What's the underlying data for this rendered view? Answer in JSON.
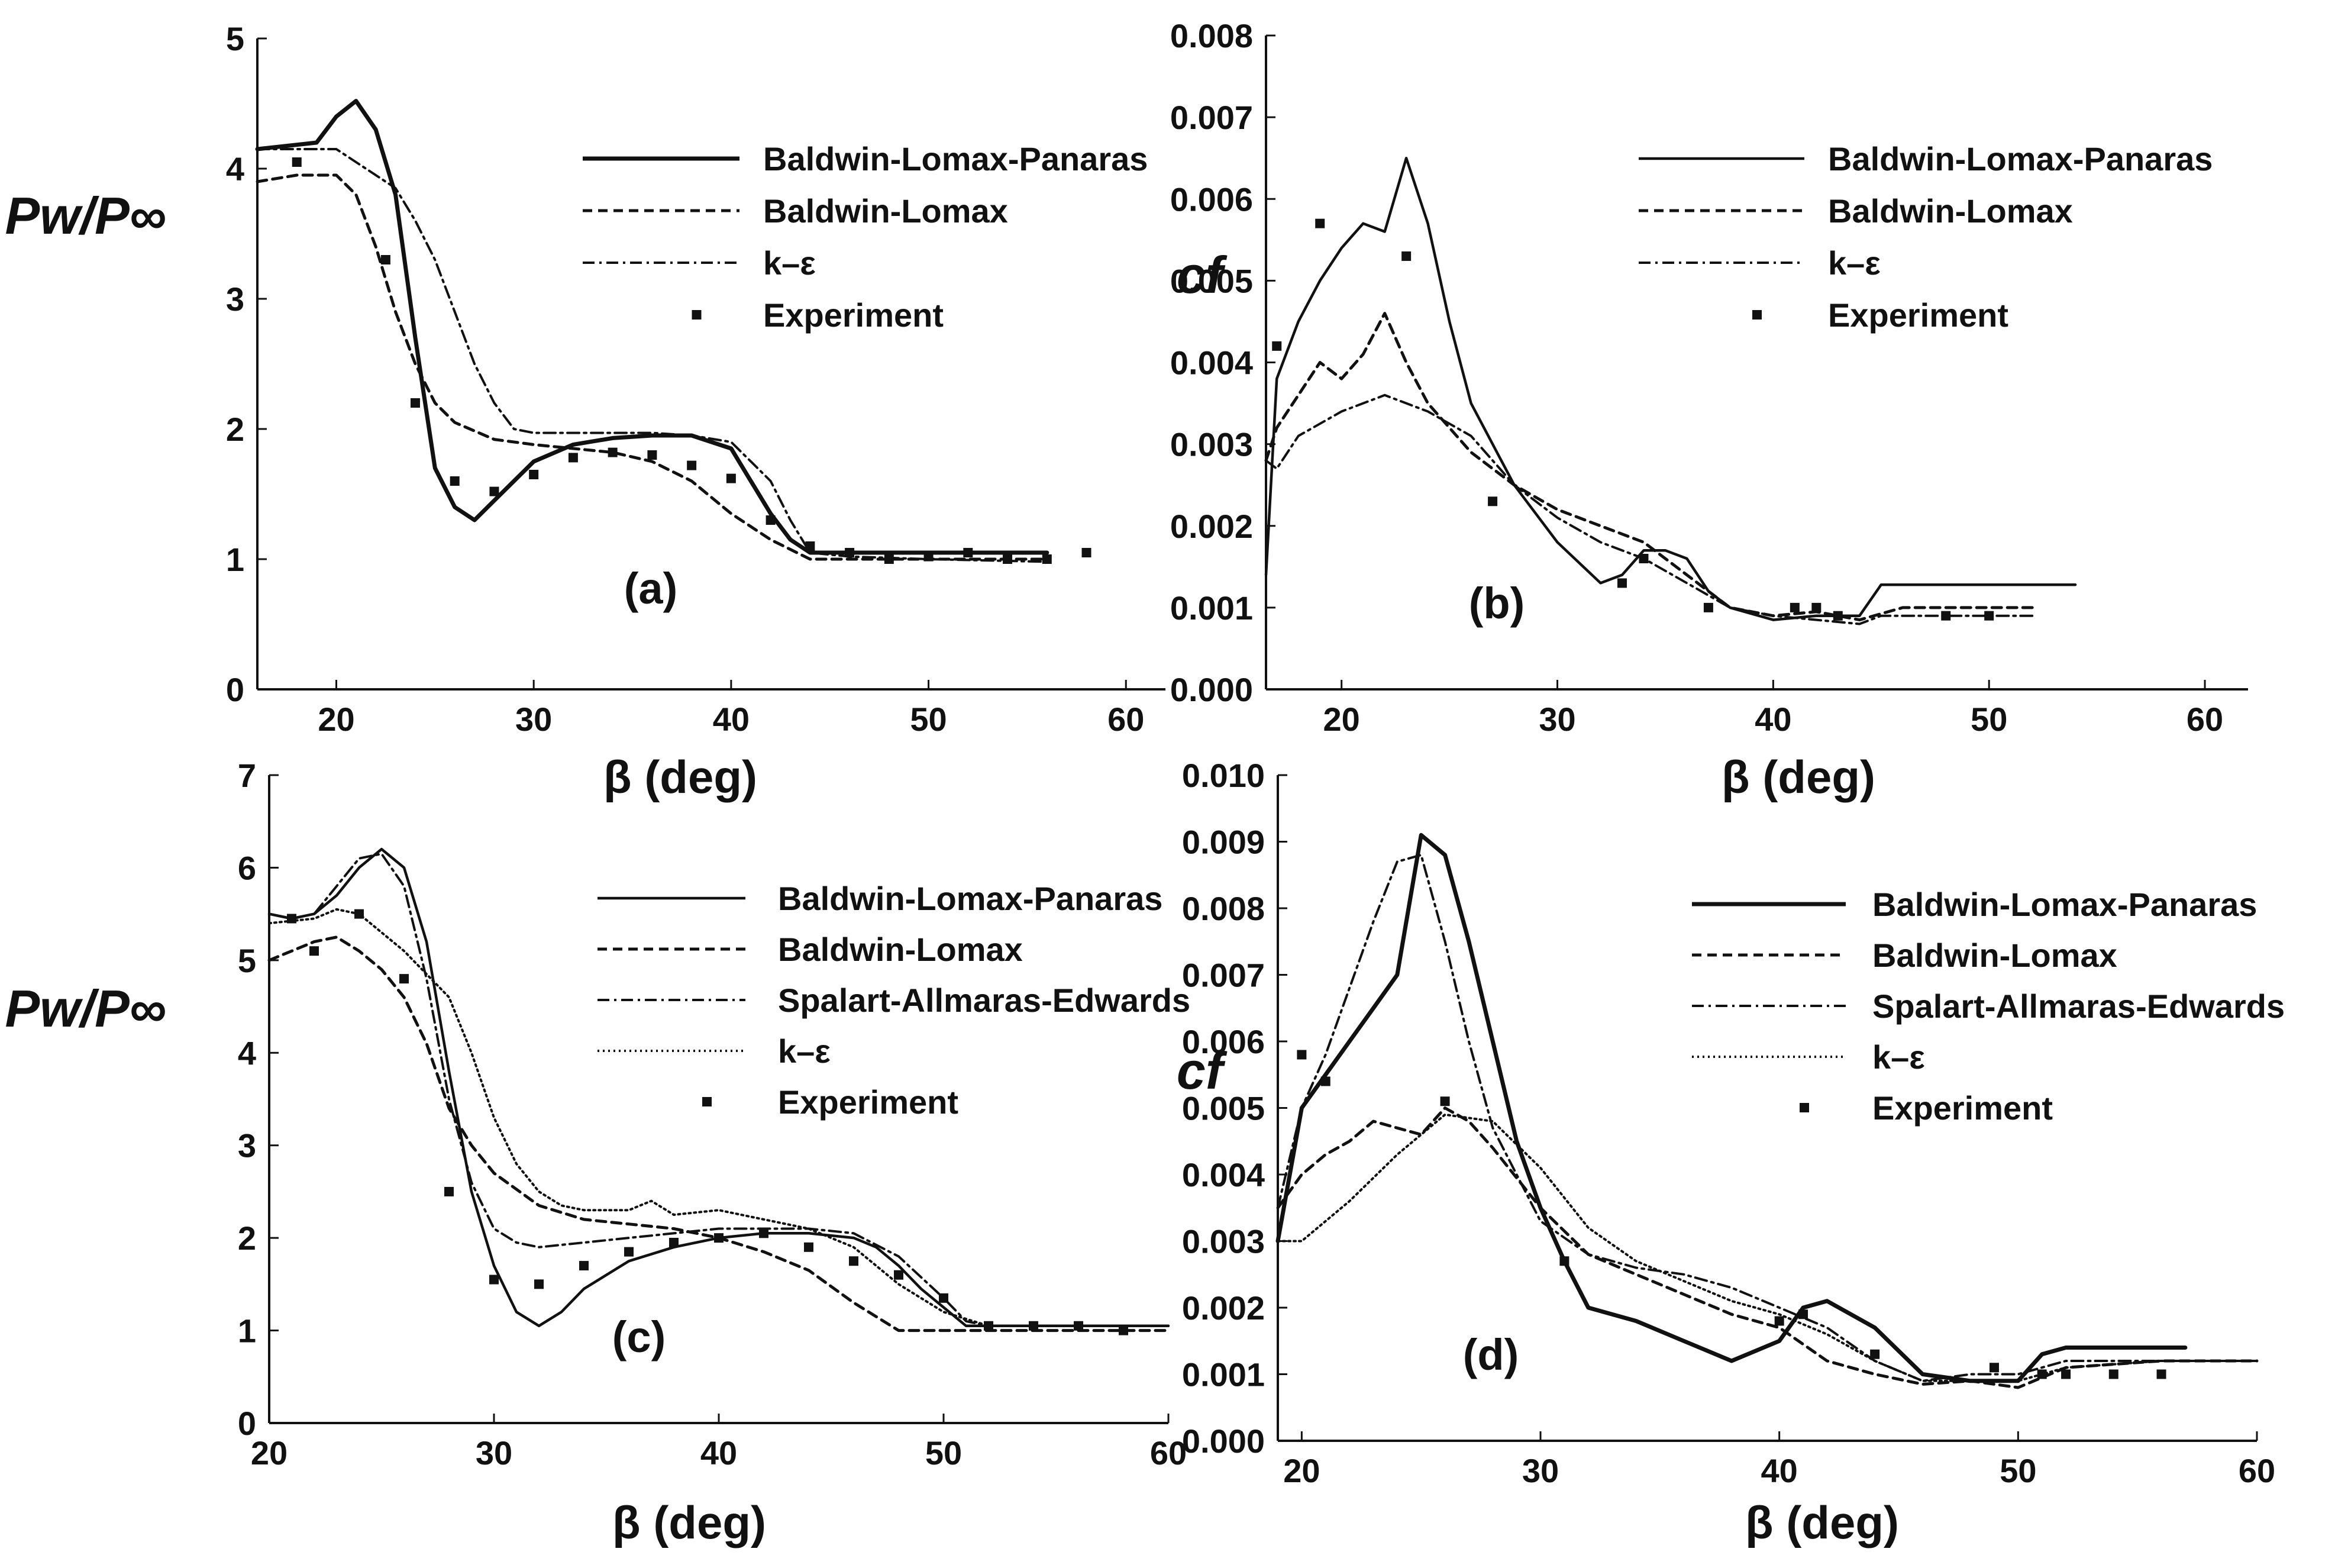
{
  "chart_data": [
    {
      "type": "line",
      "panel_label": "(a)",
      "xlabel": "β (deg)",
      "ylabel": "Pw/P∞",
      "xlim": [
        16,
        62
      ],
      "ylim": [
        0,
        5
      ],
      "xticks": [
        20,
        30,
        40,
        50,
        60
      ],
      "yticks": [
        0,
        1,
        2,
        3,
        4,
        5
      ],
      "ytick_labels": [
        "0",
        "1",
        "2",
        "3",
        "4",
        "5"
      ],
      "legend": [
        "Baldwin-Lomax-Panaras",
        "Baldwin-Lomax",
        "k–ε",
        "Experiment"
      ],
      "series": [
        {
          "name": "Baldwin-Lomax-Panaras",
          "style": "solid-thick",
          "x": [
            16,
            19,
            20,
            21,
            22,
            23,
            24,
            25,
            26,
            27,
            28,
            29,
            30,
            32,
            34,
            36,
            38,
            40,
            41,
            42,
            43,
            44,
            46,
            50,
            56
          ],
          "y": [
            4.15,
            4.2,
            4.4,
            4.52,
            4.3,
            3.8,
            2.7,
            1.7,
            1.4,
            1.3,
            1.45,
            1.6,
            1.75,
            1.88,
            1.93,
            1.95,
            1.95,
            1.85,
            1.6,
            1.35,
            1.15,
            1.05,
            1.05,
            1.05,
            1.05
          ]
        },
        {
          "name": "Baldwin-Lomax",
          "style": "dashed",
          "x": [
            16,
            18,
            20,
            21,
            22,
            23,
            24,
            25,
            26,
            28,
            30,
            32,
            34,
            36,
            38,
            40,
            42,
            44,
            46,
            50,
            56
          ],
          "y": [
            3.9,
            3.95,
            3.95,
            3.8,
            3.4,
            2.9,
            2.5,
            2.2,
            2.05,
            1.92,
            1.88,
            1.85,
            1.82,
            1.75,
            1.6,
            1.35,
            1.15,
            1.0,
            1.0,
            1.0,
            1.0
          ]
        },
        {
          "name": "k–ε",
          "style": "dashdot",
          "x": [
            16,
            18,
            20,
            21,
            22,
            23,
            24,
            25,
            26,
            27,
            28,
            29,
            30,
            32,
            34,
            36,
            38,
            40,
            42,
            43,
            44,
            46,
            50,
            56
          ],
          "y": [
            4.15,
            4.15,
            4.15,
            4.05,
            3.95,
            3.85,
            3.6,
            3.3,
            2.9,
            2.5,
            2.2,
            2.0,
            1.97,
            1.97,
            1.97,
            1.97,
            1.95,
            1.9,
            1.6,
            1.3,
            1.05,
            1.02,
            1.0,
            0.98
          ]
        },
        {
          "name": "Experiment",
          "style": "markers",
          "x": [
            18,
            22.5,
            24,
            26,
            28,
            30,
            32,
            34,
            36,
            38,
            40,
            42,
            44,
            46,
            48,
            50,
            52,
            54,
            56,
            58
          ],
          "y": [
            4.05,
            3.3,
            2.2,
            1.6,
            1.52,
            1.65,
            1.78,
            1.82,
            1.8,
            1.72,
            1.62,
            1.3,
            1.1,
            1.05,
            1.0,
            1.02,
            1.05,
            1.0,
            1.0,
            1.05
          ]
        }
      ]
    },
    {
      "type": "line",
      "panel_label": "(b)",
      "xlabel": "β (deg)",
      "ylabel": "cf",
      "xlim": [
        16.5,
        62
      ],
      "ylim": [
        0,
        0.008
      ],
      "xticks": [
        20,
        30,
        40,
        50,
        60
      ],
      "yticks": [
        0,
        0.001,
        0.002,
        0.003,
        0.004,
        0.005,
        0.006,
        0.007,
        0.008
      ],
      "ytick_labels": [
        "0.000",
        "0.001",
        "0.002",
        "0.003",
        "0.004",
        "0.005",
        "0.006",
        "0.007",
        "0.008"
      ],
      "legend": [
        "Baldwin-Lomax-Panaras",
        "Baldwin-Lomax",
        "k–ε",
        "Experiment"
      ],
      "series": [
        {
          "name": "Baldwin-Lomax-Panaras",
          "style": "solid",
          "x": [
            16.5,
            17,
            18,
            19,
            20,
            21,
            22,
            23,
            24,
            25,
            26,
            28,
            30,
            32,
            33,
            34,
            35,
            36,
            37,
            38,
            40,
            42,
            44,
            45,
            50,
            54
          ],
          "y": [
            0.0014,
            0.0038,
            0.0045,
            0.005,
            0.0054,
            0.0057,
            0.0056,
            0.0065,
            0.0057,
            0.0045,
            0.0035,
            0.0025,
            0.0018,
            0.0013,
            0.0014,
            0.0017,
            0.0017,
            0.0016,
            0.0012,
            0.001,
            0.00085,
            0.0009,
            0.0009,
            0.00128,
            0.00128,
            0.00128
          ]
        },
        {
          "name": "Baldwin-Lomax",
          "style": "dashed",
          "x": [
            16.5,
            17,
            18,
            19,
            20,
            21,
            22,
            23,
            24,
            26,
            28,
            30,
            32,
            34,
            36,
            38,
            40,
            42,
            44,
            46,
            50,
            52
          ],
          "y": [
            0.0028,
            0.0032,
            0.0036,
            0.004,
            0.0038,
            0.0041,
            0.0046,
            0.004,
            0.0035,
            0.0029,
            0.0025,
            0.0022,
            0.002,
            0.0018,
            0.0014,
            0.001,
            0.0009,
            0.00095,
            0.00085,
            0.001,
            0.001,
            0.001
          ]
        },
        {
          "name": "k–ε",
          "style": "dashdot",
          "x": [
            16.5,
            17,
            18,
            20,
            22,
            24,
            26,
            28,
            30,
            32,
            34,
            36,
            38,
            40,
            42,
            44,
            45,
            46,
            50,
            52
          ],
          "y": [
            0.0028,
            0.0027,
            0.0031,
            0.0034,
            0.0036,
            0.0034,
            0.0031,
            0.0025,
            0.0021,
            0.0018,
            0.0016,
            0.0013,
            0.001,
            0.0009,
            0.00085,
            0.0008,
            0.0009,
            0.0009,
            0.0009,
            0.0009
          ]
        },
        {
          "name": "Experiment",
          "style": "markers",
          "x": [
            17,
            19,
            23,
            27,
            33,
            34,
            37,
            41,
            42,
            43,
            48,
            50
          ],
          "y": [
            0.0042,
            0.0057,
            0.0053,
            0.0023,
            0.0013,
            0.0016,
            0.001,
            0.001,
            0.001,
            0.0009,
            0.0009,
            0.0009
          ]
        }
      ]
    },
    {
      "type": "line",
      "panel_label": "(c)",
      "xlabel": "β (deg)",
      "ylabel": "Pw/P∞",
      "xlim": [
        20,
        60
      ],
      "ylim": [
        0,
        7
      ],
      "xticks": [
        20,
        30,
        40,
        50,
        60
      ],
      "yticks": [
        0,
        1,
        2,
        3,
        4,
        5,
        6,
        7
      ],
      "ytick_labels": [
        "0",
        "1",
        "2",
        "3",
        "4",
        "5",
        "6",
        "7"
      ],
      "legend": [
        "Baldwin-Lomax-Panaras",
        "Baldwin-Lomax",
        "Spalart-Allmaras-Edwards",
        "k–ε",
        "Experiment"
      ],
      "series": [
        {
          "name": "Baldwin-Lomax-Panaras",
          "style": "solid",
          "x": [
            20,
            21,
            22,
            23,
            24,
            25,
            26,
            27,
            28,
            29,
            30,
            31,
            32,
            33,
            34,
            36,
            38,
            40,
            42,
            44,
            46,
            47,
            48,
            49,
            50,
            51,
            52,
            56,
            60
          ],
          "y": [
            5.5,
            5.45,
            5.5,
            5.7,
            6.0,
            6.2,
            6.0,
            5.2,
            3.8,
            2.5,
            1.7,
            1.2,
            1.05,
            1.2,
            1.45,
            1.75,
            1.9,
            2.0,
            2.05,
            2.05,
            2.0,
            1.9,
            1.7,
            1.45,
            1.25,
            1.05,
            1.05,
            1.05,
            1.05
          ]
        },
        {
          "name": "Baldwin-Lomax",
          "style": "dashed",
          "x": [
            20,
            22,
            23,
            24,
            25,
            26,
            27,
            28,
            29,
            30,
            32,
            34,
            36,
            38,
            40,
            42,
            44,
            46,
            48,
            50,
            56,
            60
          ],
          "y": [
            5.0,
            5.2,
            5.25,
            5.1,
            4.9,
            4.6,
            4.1,
            3.4,
            3.0,
            2.7,
            2.35,
            2.2,
            2.15,
            2.1,
            2.0,
            1.85,
            1.65,
            1.3,
            1.0,
            1.0,
            1.0,
            1.0
          ]
        },
        {
          "name": "Spalart-Allmaras-Edwards",
          "style": "dashdot",
          "x": [
            20,
            21,
            22,
            23,
            24,
            25,
            26,
            27,
            28,
            29,
            30,
            31,
            32,
            34,
            36,
            38,
            40,
            42,
            44,
            46,
            48,
            50,
            51,
            52,
            56,
            60
          ],
          "y": [
            5.5,
            5.45,
            5.5,
            5.8,
            6.1,
            6.15,
            5.8,
            4.8,
            3.5,
            2.6,
            2.1,
            1.95,
            1.9,
            1.95,
            2.0,
            2.05,
            2.1,
            2.1,
            2.1,
            2.05,
            1.8,
            1.35,
            1.1,
            1.05,
            1.05,
            1.05
          ]
        },
        {
          "name": "k–ε",
          "style": "dotted",
          "x": [
            20,
            22,
            23,
            24,
            26,
            28,
            29,
            30,
            31,
            32,
            33,
            34,
            36,
            37,
            38,
            40,
            42,
            44,
            46,
            48,
            50,
            52,
            56,
            60
          ],
          "y": [
            5.4,
            5.45,
            5.55,
            5.5,
            5.1,
            4.6,
            4.0,
            3.3,
            2.8,
            2.5,
            2.35,
            2.3,
            2.3,
            2.4,
            2.25,
            2.3,
            2.2,
            2.1,
            1.9,
            1.5,
            1.2,
            1.05,
            1.05,
            1.05
          ]
        },
        {
          "name": "Experiment",
          "style": "markers",
          "x": [
            21,
            22,
            24,
            26,
            28,
            30,
            32,
            34,
            36,
            38,
            40,
            42,
            44,
            46,
            48,
            50,
            52,
            54,
            56,
            58
          ],
          "y": [
            5.45,
            5.1,
            5.5,
            4.8,
            2.5,
            1.55,
            1.5,
            1.7,
            1.85,
            1.95,
            2.0,
            2.05,
            1.9,
            1.75,
            1.6,
            1.35,
            1.05,
            1.05,
            1.05,
            1.0
          ]
        }
      ]
    },
    {
      "type": "line",
      "panel_label": "(d)",
      "xlabel": "β (deg)",
      "ylabel": "cf",
      "xlim": [
        19,
        60
      ],
      "ylim": [
        0,
        0.01
      ],
      "xticks": [
        20,
        30,
        40,
        50,
        60
      ],
      "yticks": [
        0,
        0.001,
        0.002,
        0.003,
        0.004,
        0.005,
        0.006,
        0.007,
        0.008,
        0.009,
        0.01
      ],
      "ytick_labels": [
        "0.000",
        "0.001",
        "0.002",
        "0.003",
        "0.004",
        "0.005",
        "0.006",
        "0.007",
        "0.008",
        "0.009",
        "0.010"
      ],
      "legend": [
        "Baldwin-Lomax-Panaras",
        "Baldwin-Lomax",
        "Spalart-Allmaras-Edwards",
        "k–ε",
        "Experiment"
      ],
      "series": [
        {
          "name": "Baldwin-Lomax-Panaras",
          "style": "solid-thick",
          "x": [
            19,
            20,
            21,
            22,
            23,
            24,
            25,
            26,
            27,
            28,
            29,
            30,
            31,
            32,
            33,
            34,
            36,
            38,
            40,
            41,
            42,
            44,
            46,
            48,
            50,
            51,
            52,
            57
          ],
          "y": [
            0.003,
            0.005,
            0.0055,
            0.006,
            0.0065,
            0.007,
            0.0091,
            0.0088,
            0.0075,
            0.006,
            0.0045,
            0.0035,
            0.0027,
            0.002,
            0.0019,
            0.0018,
            0.0015,
            0.0012,
            0.0015,
            0.002,
            0.0021,
            0.0017,
            0.001,
            0.0009,
            0.0009,
            0.0013,
            0.0014,
            0.0014
          ]
        },
        {
          "name": "Baldwin-Lomax",
          "style": "dashed",
          "x": [
            19,
            20,
            21,
            22,
            23,
            24,
            25,
            26,
            27,
            28,
            30,
            32,
            34,
            36,
            38,
            40,
            42,
            44,
            46,
            48,
            50,
            52,
            56,
            60
          ],
          "y": [
            0.0035,
            0.004,
            0.0043,
            0.0045,
            0.0048,
            0.0047,
            0.0046,
            0.005,
            0.0048,
            0.0044,
            0.0035,
            0.0028,
            0.0025,
            0.0022,
            0.0019,
            0.0017,
            0.0012,
            0.001,
            0.00085,
            0.0009,
            0.0008,
            0.0011,
            0.0012,
            0.0012
          ]
        },
        {
          "name": "Spalart-Allmaras-Edwards",
          "style": "dashdot",
          "x": [
            19,
            20,
            21,
            22,
            23,
            24,
            25,
            26,
            27,
            28,
            30,
            32,
            34,
            36,
            38,
            40,
            42,
            44,
            46,
            48,
            50,
            52,
            56,
            60
          ],
          "y": [
            0.0035,
            0.005,
            0.0058,
            0.0068,
            0.0078,
            0.0087,
            0.0088,
            0.0075,
            0.006,
            0.0047,
            0.0033,
            0.0028,
            0.0026,
            0.0025,
            0.0023,
            0.002,
            0.0017,
            0.0012,
            0.0009,
            0.001,
            0.001,
            0.0012,
            0.0012,
            0.0012
          ]
        },
        {
          "name": "k–ε",
          "style": "dotted",
          "x": [
            19,
            20,
            22,
            24,
            26,
            28,
            30,
            32,
            34,
            36,
            38,
            40,
            42,
            44,
            46,
            48,
            50,
            52,
            56,
            60
          ],
          "y": [
            0.003,
            0.003,
            0.0036,
            0.0043,
            0.0049,
            0.0048,
            0.0041,
            0.0032,
            0.0027,
            0.0024,
            0.0021,
            0.0019,
            0.0016,
            0.0012,
            0.0009,
            0.0009,
            0.0009,
            0.0011,
            0.0012,
            0.0012
          ]
        },
        {
          "name": "Experiment",
          "style": "markers",
          "x": [
            20,
            21,
            26,
            31,
            40,
            41,
            44,
            49,
            51,
            52,
            54,
            56
          ],
          "y": [
            0.0058,
            0.0054,
            0.0051,
            0.0027,
            0.0018,
            0.0019,
            0.0013,
            0.0011,
            0.001,
            0.001,
            0.001,
            0.001
          ]
        }
      ]
    }
  ]
}
